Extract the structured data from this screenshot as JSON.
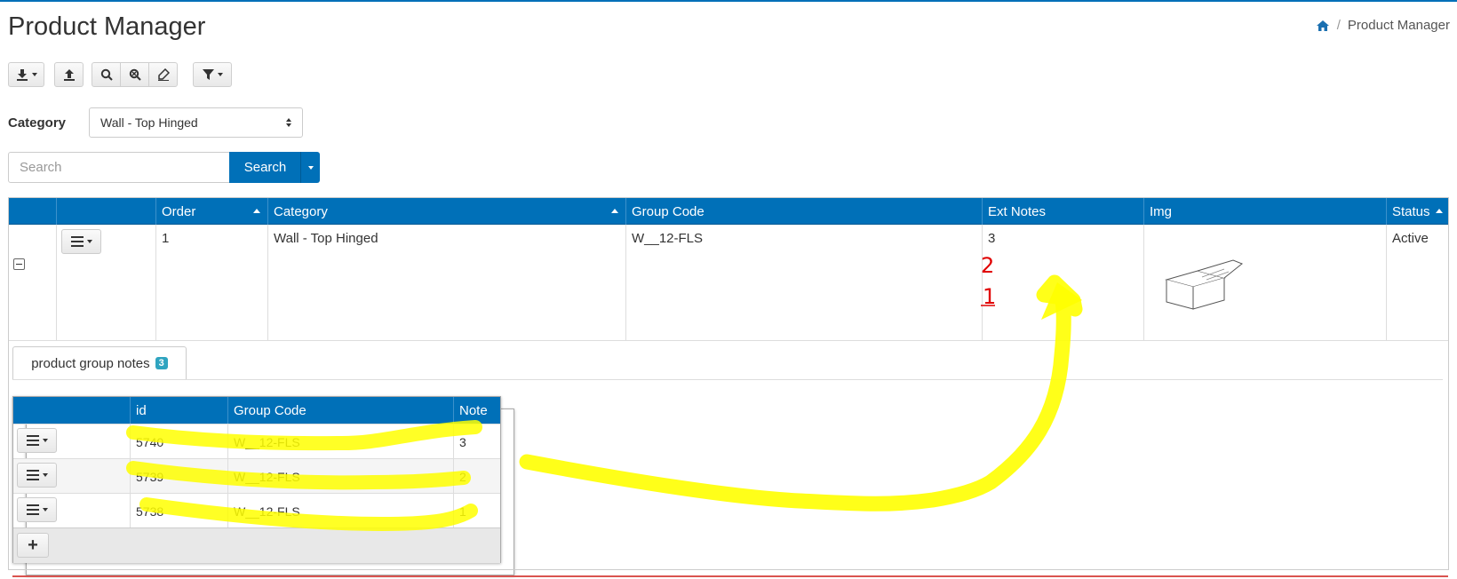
{
  "page": {
    "title": "Product Manager",
    "subtitle": "list"
  },
  "breadcrumb": {
    "home_icon": "home-icon",
    "current": "Product Manager"
  },
  "toolbar": {
    "icons": [
      "download-icon",
      "upload-icon",
      "search-icon",
      "clear-search-icon",
      "edit-icon",
      "filter-icon"
    ]
  },
  "category": {
    "label": "Category",
    "selected": "Wall - Top Hinged"
  },
  "search": {
    "placeholder": "Search",
    "button_label": "Search"
  },
  "grid": {
    "columns": [
      "",
      "",
      "Order",
      "Category",
      "Group Code",
      "Ext Notes",
      "Img",
      "Status"
    ],
    "row": {
      "order": "1",
      "category": "Wall - Top Hinged",
      "group_code": "W__12-FLS",
      "ext_notes": "3",
      "status": "Active"
    }
  },
  "detail_tab": {
    "label": "product group notes",
    "count": "3"
  },
  "notes_table": {
    "columns": [
      "",
      "id",
      "Group Code",
      "Note"
    ],
    "rows": [
      {
        "id": "5740",
        "group_code": "W__12-FLS",
        "note": "3"
      },
      {
        "id": "5739",
        "group_code": "W__12-FLS",
        "note": "2"
      },
      {
        "id": "5738",
        "group_code": "W__12-FLS",
        "note": "1"
      }
    ],
    "add_label": "+"
  },
  "annotations": {
    "red_numbers": [
      "2",
      "1"
    ],
    "highlight_color": "#ffff00",
    "red_color": "#e00000"
  },
  "colors": {
    "header_blue": "#0070b8",
    "badge": "#2fa4c0"
  }
}
